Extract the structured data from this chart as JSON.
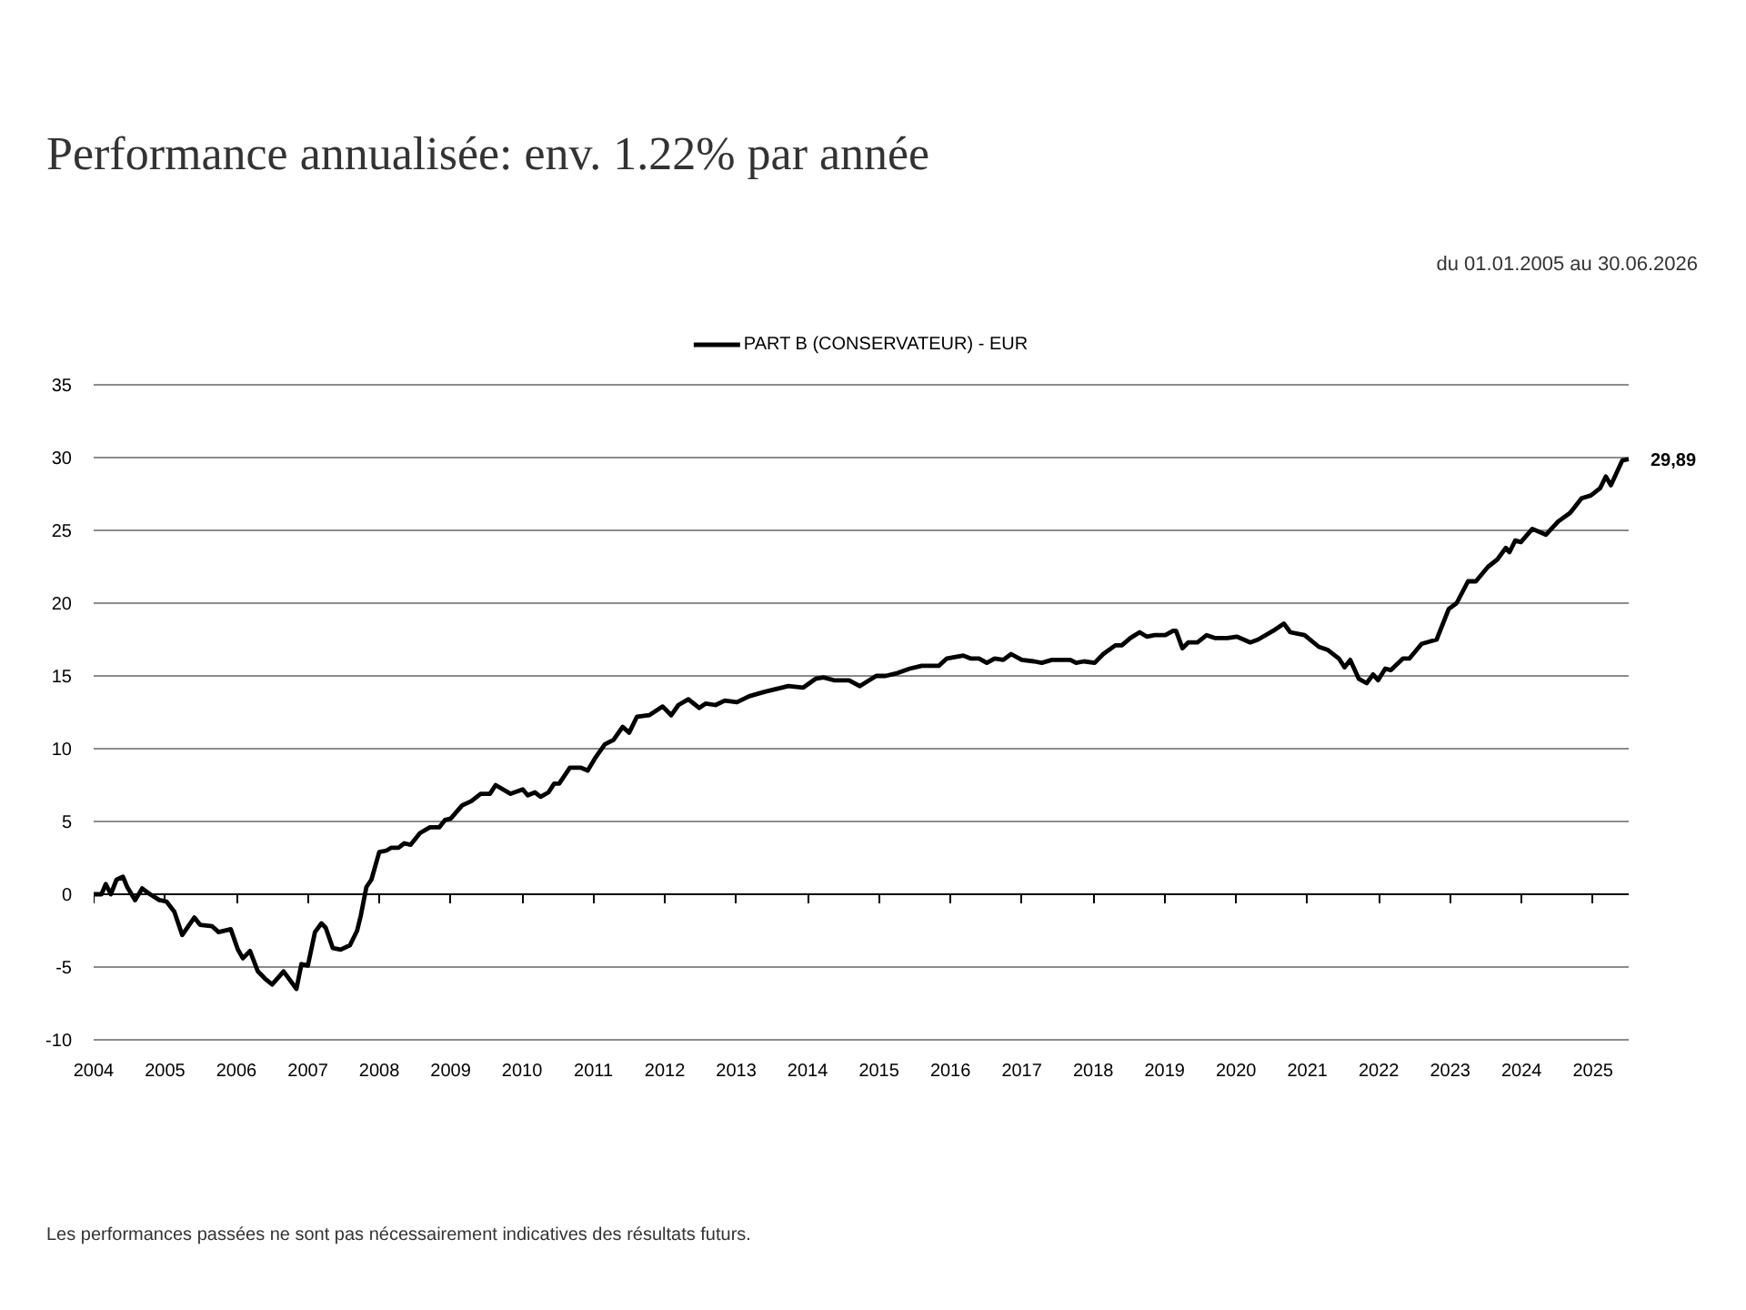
{
  "chart_data": {
    "type": "line",
    "title": "Performance annualisée: env. 1.22% par année",
    "subtitle": "du 01.01.2005 au 30.06.2026",
    "annotations": [
      "Les performances passées ne sont pas nécessairement indicatives des résultats futurs.",
      {
        "text": "29,89",
        "x": 2025.5,
        "y": 29.89
      }
    ],
    "series": [
      {
        "name": "PART B (CONSERVATEUR) - EUR",
        "color": "#000000",
        "x": [
          2004.0,
          2004.11,
          2004.17,
          2004.24,
          2004.32,
          2004.41,
          2004.47,
          2004.58,
          2004.68,
          2004.79,
          2004.92,
          2005.02,
          2005.13,
          2005.24,
          2005.41,
          2005.49,
          2005.66,
          2005.75,
          2005.92,
          2006.02,
          2006.09,
          2006.19,
          2006.3,
          2006.4,
          2006.5,
          2006.66,
          2006.84,
          2006.91,
          2007.0,
          2007.1,
          2007.19,
          2007.25,
          2007.35,
          2007.46,
          2007.59,
          2007.69,
          2007.74,
          2007.82,
          2007.89,
          2008.0,
          2008.1,
          2008.17,
          2008.27,
          2008.35,
          2008.44,
          2008.57,
          2008.71,
          2008.84,
          2008.92,
          2009.0,
          2009.16,
          2009.29,
          2009.42,
          2009.55,
          2009.63,
          2009.84,
          2010.01,
          2010.08,
          2010.18,
          2010.26,
          2010.37,
          2010.45,
          2010.52,
          2010.67,
          2010.82,
          2010.92,
          2011.03,
          2011.16,
          2011.28,
          2011.41,
          2011.5,
          2011.61,
          2011.78,
          2011.97,
          2012.09,
          2012.19,
          2012.33,
          2012.48,
          2012.57,
          2012.71,
          2012.84,
          2013.01,
          2013.18,
          2013.39,
          2013.56,
          2013.73,
          2013.94,
          2014.11,
          2014.22,
          2014.37,
          2014.58,
          2014.73,
          2014.96,
          2015.09,
          2015.26,
          2015.43,
          2015.6,
          2015.84,
          2015.95,
          2016.18,
          2016.28,
          2016.4,
          2016.51,
          2016.62,
          2016.74,
          2016.85,
          2017.0,
          2017.17,
          2017.28,
          2017.42,
          2017.68,
          2017.76,
          2017.87,
          2018.02,
          2018.14,
          2018.31,
          2018.4,
          2018.52,
          2018.65,
          2018.75,
          2018.86,
          2019.01,
          2019.12,
          2019.16,
          2019.25,
          2019.33,
          2019.46,
          2019.59,
          2019.71,
          2019.88,
          2020.01,
          2020.2,
          2020.31,
          2020.52,
          2020.67,
          2020.76,
          2020.96,
          2021.16,
          2021.28,
          2021.44,
          2021.52,
          2021.6,
          2021.72,
          2021.83,
          2021.92,
          2021.99,
          2022.09,
          2022.17,
          2022.34,
          2022.43,
          2022.6,
          2022.81,
          2022.98,
          2023.09,
          2023.25,
          2023.36,
          2023.53,
          2023.66,
          2023.78,
          2023.83,
          2023.91,
          2023.99,
          2024.15,
          2024.34,
          2024.51,
          2024.68,
          2024.84,
          2024.97,
          2025.1,
          2025.18,
          2025.25,
          2025.41,
          2025.5
        ],
        "values": [
          0,
          0,
          0.7,
          0,
          1.0,
          1.2,
          0.5,
          -0.4,
          0.4,
          0,
          -0.4,
          -0.5,
          -1.2,
          -2.8,
          -1.6,
          -2.1,
          -2.2,
          -2.6,
          -2.4,
          -3.8,
          -4.4,
          -3.9,
          -5.3,
          -5.8,
          -6.2,
          -5.3,
          -6.5,
          -4.8,
          -4.9,
          -2.6,
          -2.0,
          -2.3,
          -3.7,
          -3.8,
          -3.5,
          -2.5,
          -1.5,
          0.5,
          1.0,
          2.9,
          3.0,
          3.2,
          3.2,
          3.5,
          3.4,
          4.2,
          4.6,
          4.6,
          5.1,
          5.2,
          6.1,
          6.4,
          6.9,
          6.9,
          7.5,
          6.9,
          7.2,
          6.8,
          7.0,
          6.7,
          7.0,
          7.6,
          7.6,
          8.7,
          8.7,
          8.5,
          9.4,
          10.3,
          10.6,
          11.5,
          11.1,
          12.2,
          12.3,
          12.9,
          12.3,
          13.0,
          13.4,
          12.8,
          13.1,
          13.0,
          13.3,
          13.2,
          13.6,
          13.9,
          14.1,
          14.3,
          14.2,
          14.8,
          14.9,
          14.7,
          14.7,
          14.3,
          15.0,
          15.0,
          15.2,
          15.5,
          15.7,
          15.7,
          16.2,
          16.4,
          16.2,
          16.2,
          15.9,
          16.2,
          16.1,
          16.5,
          16.1,
          16.0,
          15.9,
          16.1,
          16.1,
          15.9,
          16.0,
          15.9,
          16.5,
          17.1,
          17.1,
          17.6,
          18.0,
          17.7,
          17.8,
          17.8,
          18.1,
          18.1,
          16.9,
          17.3,
          17.3,
          17.8,
          17.6,
          17.6,
          17.7,
          17.3,
          17.5,
          18.1,
          18.6,
          18.0,
          17.8,
          17.0,
          16.8,
          16.2,
          15.6,
          16.1,
          14.8,
          14.5,
          15.1,
          14.7,
          15.5,
          15.4,
          16.2,
          16.2,
          17.2,
          17.5,
          19.6,
          20.0,
          21.5,
          21.5,
          22.5,
          23.0,
          23.8,
          23.5,
          24.3,
          24.2,
          25.1,
          24.7,
          25.6,
          26.2,
          27.2,
          27.4,
          27.9,
          28.7,
          28.1,
          29.8,
          29.89
        ]
      }
    ],
    "xlim": [
      2004,
      2025.5
    ],
    "xticks": [
      2004,
      2005,
      2006,
      2007,
      2008,
      2009,
      2010,
      2011,
      2012,
      2013,
      2014,
      2015,
      2016,
      2017,
      2018,
      2019,
      2020,
      2021,
      2022,
      2023,
      2024,
      2025
    ],
    "ylim": [
      -10,
      35
    ],
    "yticks": [
      -10,
      -5,
      0,
      5,
      10,
      15,
      20,
      25,
      30,
      35
    ],
    "grid": "y",
    "legend": "top",
    "marker": "none",
    "line_style": "solid"
  }
}
